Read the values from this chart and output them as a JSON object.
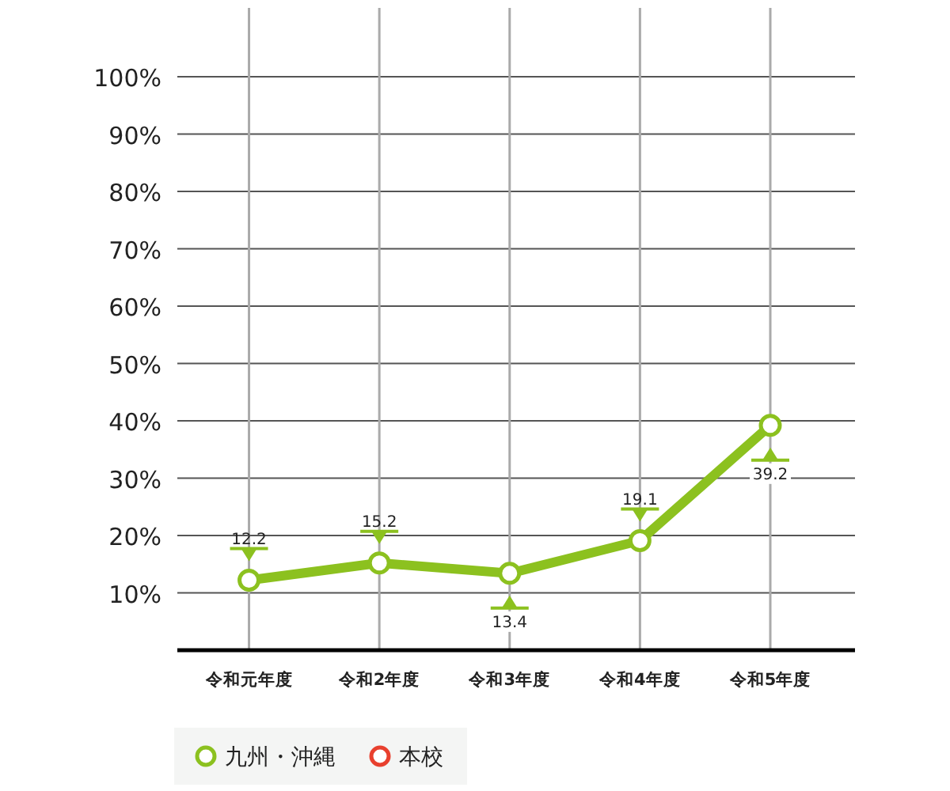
{
  "chart_data": {
    "type": "line",
    "categories": [
      "令和元年度",
      "令和2年度",
      "令和3年度",
      "令和4年度",
      "令和5年度"
    ],
    "series": [
      {
        "name": "九州・沖縄",
        "color": "#8cc11f",
        "values": [
          12.2,
          15.2,
          13.4,
          19.1,
          39.2
        ]
      },
      {
        "name": "本校",
        "color": "#e8402e",
        "values": [
          null,
          null,
          null,
          null,
          null
        ]
      }
    ],
    "ylim": [
      0,
      112
    ],
    "yticks": [
      {
        "value": 10,
        "label": "10%"
      },
      {
        "value": 20,
        "label": "20%"
      },
      {
        "value": 30,
        "label": "30%"
      },
      {
        "value": 40,
        "label": "40%"
      },
      {
        "value": 50,
        "label": "50%"
      },
      {
        "value": 60,
        "label": "60%"
      },
      {
        "value": 70,
        "label": "70%"
      },
      {
        "value": 80,
        "label": "80%"
      },
      {
        "value": 90,
        "label": "90%"
      },
      {
        "value": 100,
        "label": "100%"
      }
    ],
    "grid": true,
    "marker": "circle",
    "data_labels": true,
    "legend": "bottom left"
  }
}
